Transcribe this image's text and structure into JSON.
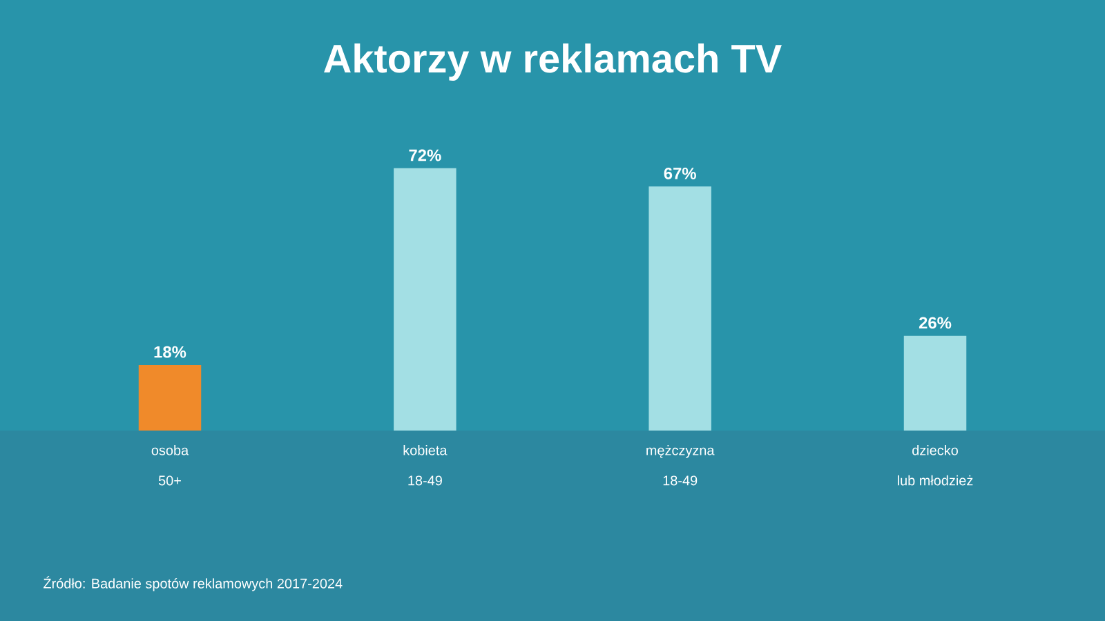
{
  "chart_data": {
    "type": "bar",
    "title": "Aktorzy w reklamach TV",
    "categories": [
      "osoba\n50+",
      "kobieta\n18-49",
      "mężczyzna\n18-49",
      "dziecko\nlub młodzież"
    ],
    "values": [
      18,
      72,
      67,
      26
    ],
    "value_labels": [
      "18%",
      "72%",
      "67%",
      "26%"
    ],
    "colors": [
      "#f08a2a",
      "#a3dfe4",
      "#a3dfe4",
      "#a3dfe4"
    ],
    "annotations": [
      "Źródło: Badanie spotów reklamowych 2017-2024"
    ]
  }
}
